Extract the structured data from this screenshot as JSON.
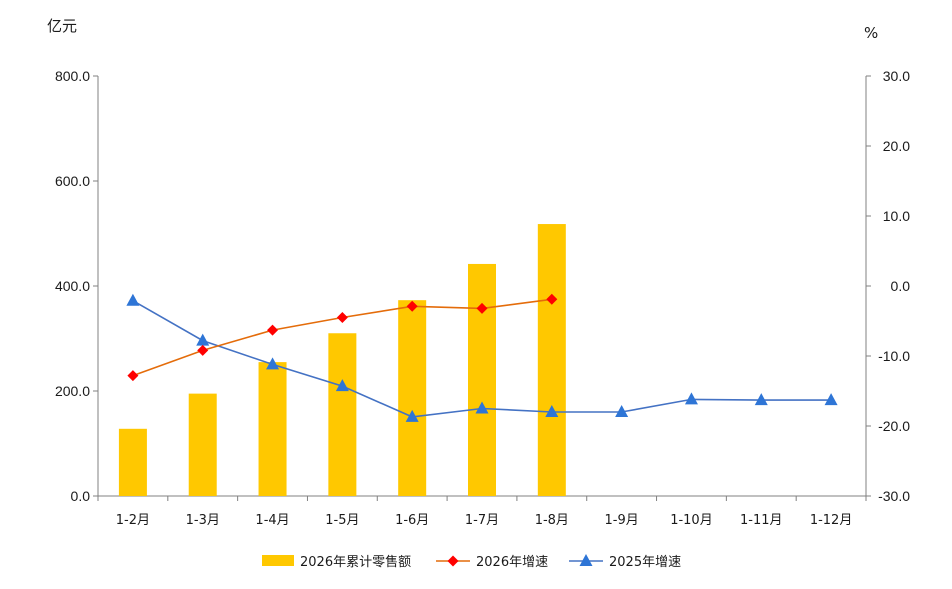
{
  "chart_data": {
    "type": "bar+line",
    "categories": [
      "1-2月",
      "1-3月",
      "1-4月",
      "1-5月",
      "1-6月",
      "1-7月",
      "1-8月",
      "1-9月",
      "1-10月",
      "1-11月",
      "1-12月"
    ],
    "left_axis": {
      "unit": "亿元",
      "range": [
        0,
        800
      ],
      "ticks": [
        "0.0",
        "200.0",
        "400.0",
        "600.0",
        "800.0"
      ]
    },
    "right_axis": {
      "unit": "%",
      "range": [
        -30,
        30
      ],
      "ticks": [
        "-30.0",
        "-20.0",
        "-10.0",
        "0.0",
        "10.0",
        "20.0",
        "30.0"
      ]
    },
    "series": [
      {
        "name": "2026年累计零售额",
        "kind": "bar",
        "axis": "left",
        "color": "#FFC800",
        "values": [
          128,
          195,
          255,
          310,
          373,
          442,
          518,
          null,
          null,
          null,
          null
        ]
      },
      {
        "name": "2026年增速",
        "kind": "line",
        "axis": "right",
        "color": "#E46C0A",
        "marker": "diamond",
        "marker_color": "#FF0000",
        "values": [
          -12.8,
          -9.2,
          -6.3,
          -4.5,
          -2.9,
          -3.2,
          -1.9,
          null,
          null,
          null,
          null
        ]
      },
      {
        "name": "2025年增速",
        "kind": "line",
        "axis": "right",
        "color": "#4472C4",
        "marker": "triangle",
        "marker_color": "#2E75D6",
        "values": [
          -2.1,
          -7.8,
          -11.2,
          -14.3,
          -18.7,
          -17.5,
          -18.0,
          -18.0,
          -16.2,
          -16.3,
          -16.3
        ]
      }
    ],
    "grid": false,
    "legend_position": "bottom"
  }
}
